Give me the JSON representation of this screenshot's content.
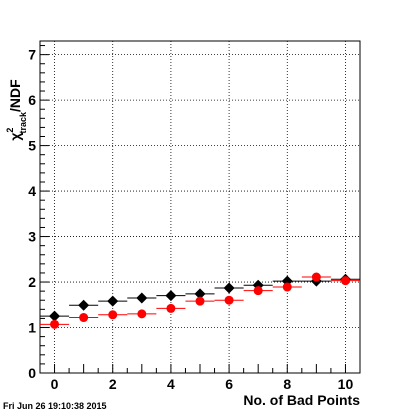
{
  "timestamp": "Fri Jun 26 19:10:38 2015",
  "chart_data": {
    "type": "scatter",
    "xlabel": "No. of Bad Points",
    "ylabel": {
      "main": "χ",
      "superscript": "2",
      "subscript": "track",
      "suffix": "/NDF"
    },
    "xlim": [
      -0.5,
      10.5
    ],
    "ylim": [
      0,
      7.3
    ],
    "xticks": [
      0,
      2,
      4,
      6,
      8,
      10
    ],
    "yticks": [
      0,
      1,
      2,
      3,
      4,
      5,
      6,
      7
    ],
    "grid": true,
    "series": [
      {
        "color": "#000000",
        "marker": "diamond",
        "x": [
          0,
          1,
          2,
          3,
          4,
          5,
          6,
          7,
          8,
          9,
          10
        ],
        "y": [
          1.25,
          1.49,
          1.58,
          1.65,
          1.7,
          1.74,
          1.87,
          1.93,
          2.02,
          2.02,
          2.06
        ],
        "xerr": 0.5
      },
      {
        "color": "#ff0000",
        "marker": "circle",
        "x": [
          0,
          1,
          2,
          3,
          4,
          5,
          6,
          7,
          8,
          9,
          10
        ],
        "y": [
          1.07,
          1.22,
          1.28,
          1.3,
          1.42,
          1.58,
          1.6,
          1.81,
          1.89,
          2.11,
          2.03
        ],
        "xerr": 0.5
      }
    ]
  }
}
